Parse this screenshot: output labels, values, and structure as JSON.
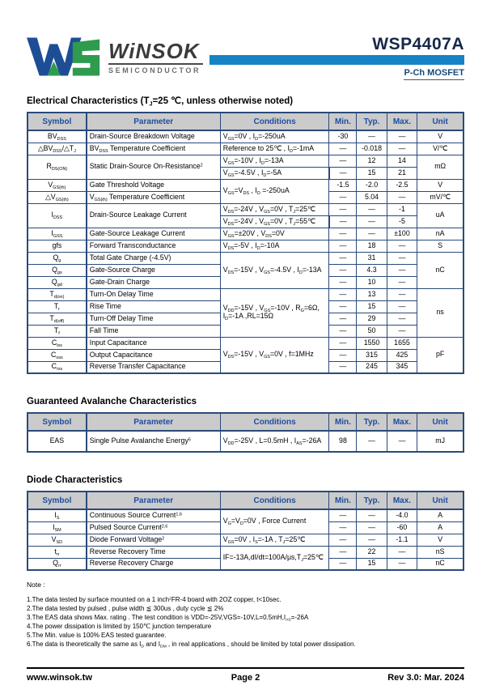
{
  "header": {
    "brand": "WiNSOK",
    "brand_sub": "SEMICONDUCTOR",
    "part_number": "WSP4407A",
    "device_type": "P-Ch MOSFET"
  },
  "colors": {
    "accent_bar": "#1583c5",
    "logo_blue": "#1d4e95",
    "logo_green": "#2f9b4e",
    "table_border": "#2a4a7a",
    "table_header_text": "#1d4da0",
    "table_header_bg": "#cbcbcb",
    "symbol_cell_bg": "#d5d5d5"
  },
  "table_columns": [
    "Symbol",
    "Parameter",
    "Conditions",
    "Min.",
    "Typ.",
    "Max.",
    "Unit"
  ],
  "electrical": {
    "title": "Electrical Characteristics (T~J~=25 ℃, unless otherwise noted)",
    "rows": [
      [
        {
          "t": "BV~DSS~",
          "c": "sym"
        },
        {
          "t": "Drain-Source Breakdown Voltage",
          "c": "param"
        },
        {
          "t": "V~GS~=0V , I~D~=-250uA",
          "c": "cond"
        },
        {
          "t": "-30",
          "c": "num"
        },
        {
          "t": "—",
          "c": "num"
        },
        {
          "t": "—",
          "c": "num"
        },
        {
          "t": "V",
          "c": "unit"
        }
      ],
      [
        {
          "t": "△BV~DSS~/△T~J~",
          "c": "sym"
        },
        {
          "t": "BV~DSS~ Temperature Coefficient",
          "c": "param"
        },
        {
          "t": "Reference to 25℃ , I~D~=-1mA",
          "c": "cond"
        },
        {
          "t": "—",
          "c": "num"
        },
        {
          "t": "-0.018",
          "c": "num"
        },
        {
          "t": "—",
          "c": "num"
        },
        {
          "t": "V/℃",
          "c": "unit"
        }
      ],
      [
        {
          "t": "R~DS(ON)~",
          "c": "sym",
          "r": 2
        },
        {
          "t": "Static Drain-Source On-Resistance^2^",
          "c": "param",
          "r": 2
        },
        {
          "t": "V~GS~=-10V , I~D~=-13A",
          "c": "cond"
        },
        {
          "t": "—",
          "c": "num"
        },
        {
          "t": "12",
          "c": "num"
        },
        {
          "t": "14",
          "c": "num"
        },
        {
          "t": "mΩ",
          "c": "unit",
          "r": 2
        }
      ],
      [
        {
          "t": "V~GS~=-4.5V , I~D~=-5A",
          "c": "cond"
        },
        {
          "t": "—",
          "c": "num"
        },
        {
          "t": "15",
          "c": "num"
        },
        {
          "t": "21",
          "c": "num"
        }
      ],
      [
        {
          "t": "V~GS(th)~",
          "c": "sym"
        },
        {
          "t": "Gate Threshold Voltage",
          "c": "param"
        },
        {
          "t": "V~GS~=V~DS~ , I~D~ =-250uA",
          "c": "cond",
          "r": 2
        },
        {
          "t": "-1.5",
          "c": "num"
        },
        {
          "t": "-2.0",
          "c": "num"
        },
        {
          "t": "-2.5",
          "c": "num"
        },
        {
          "t": "V",
          "c": "unit"
        }
      ],
      [
        {
          "t": "△V~GS(th)~",
          "c": "sym"
        },
        {
          "t": "V~GS(th)~ Temperature Coefficient",
          "c": "param"
        },
        {
          "t": "—",
          "c": "num"
        },
        {
          "t": "5.04",
          "c": "num"
        },
        {
          "t": "—",
          "c": "num"
        },
        {
          "t": "mV/℃",
          "c": "unit"
        }
      ],
      [
        {
          "t": "I~DSS~",
          "c": "sym",
          "r": 2
        },
        {
          "t": "Drain-Source Leakage Current",
          "c": "param",
          "r": 2
        },
        {
          "t": "V~DS~=-24V , V~GS~=0V , T~J~=25℃",
          "c": "cond"
        },
        {
          "t": "—",
          "c": "num"
        },
        {
          "t": "—",
          "c": "num"
        },
        {
          "t": "-1",
          "c": "num"
        },
        {
          "t": "uA",
          "c": "unit",
          "r": 2
        }
      ],
      [
        {
          "t": "V~DS~=-24V , V~GS~=0V , T~J~=55℃",
          "c": "cond"
        },
        {
          "t": "—",
          "c": "num"
        },
        {
          "t": "—",
          "c": "num"
        },
        {
          "t": "-5",
          "c": "num"
        }
      ],
      [
        {
          "t": "I~GSS~",
          "c": "sym"
        },
        {
          "t": "Gate-Source Leakage Current",
          "c": "param"
        },
        {
          "t": "V~GS~=±20V , V~DS~=0V",
          "c": "cond"
        },
        {
          "t": "—",
          "c": "num"
        },
        {
          "t": "—",
          "c": "num"
        },
        {
          "t": "±100",
          "c": "num"
        },
        {
          "t": "nA",
          "c": "unit"
        }
      ],
      [
        {
          "t": "gfs",
          "c": "sym"
        },
        {
          "t": "Forward Transconductance",
          "c": "param"
        },
        {
          "t": "V~DS~=-5V , I~D~=-10A",
          "c": "cond"
        },
        {
          "t": "—",
          "c": "num"
        },
        {
          "t": "18",
          "c": "num"
        },
        {
          "t": "—",
          "c": "num"
        },
        {
          "t": "S",
          "c": "unit"
        }
      ],
      [
        {
          "t": "Q~g~",
          "c": "sym"
        },
        {
          "t": "Total Gate Charge (-4.5V)",
          "c": "param"
        },
        {
          "t": "V~DS~=-15V , V~GS~=-4.5V , I~D~=-13A",
          "c": "cond",
          "r": 3
        },
        {
          "t": "—",
          "c": "num"
        },
        {
          "t": "31",
          "c": "num"
        },
        {
          "t": "—",
          "c": "num"
        },
        {
          "t": "nC",
          "c": "unit",
          "r": 3
        }
      ],
      [
        {
          "t": "Q~gs~",
          "c": "sym"
        },
        {
          "t": "Gate-Source Charge",
          "c": "param"
        },
        {
          "t": "—",
          "c": "num"
        },
        {
          "t": "4.3",
          "c": "num"
        },
        {
          "t": "—",
          "c": "num"
        }
      ],
      [
        {
          "t": "Q~gd~",
          "c": "sym"
        },
        {
          "t": "Gate-Drain Charge",
          "c": "param"
        },
        {
          "t": "—",
          "c": "num"
        },
        {
          "t": "10",
          "c": "num"
        },
        {
          "t": "—",
          "c": "num"
        }
      ],
      [
        {
          "t": "T~d(on)~",
          "c": "sym"
        },
        {
          "t": "Turn-On Delay Time",
          "c": "param"
        },
        {
          "t": "V~DD~=-15V , V~GS~=-10V , R~G~=6Ω, I~D~=-1A ,RL=15Ω",
          "c": "cond",
          "r": 4
        },
        {
          "t": "—",
          "c": "num"
        },
        {
          "t": "13",
          "c": "num"
        },
        {
          "t": "—",
          "c": "num"
        },
        {
          "t": "ns",
          "c": "unit",
          "r": 4
        }
      ],
      [
        {
          "t": "T~r~",
          "c": "sym"
        },
        {
          "t": "Rise Time",
          "c": "param"
        },
        {
          "t": "—",
          "c": "num"
        },
        {
          "t": "15",
          "c": "num"
        },
        {
          "t": "—",
          "c": "num"
        }
      ],
      [
        {
          "t": "T~d(off)~",
          "c": "sym"
        },
        {
          "t": "Turn-Off Delay Time",
          "c": "param"
        },
        {
          "t": "—",
          "c": "num"
        },
        {
          "t": "29",
          "c": "num"
        },
        {
          "t": "—",
          "c": "num"
        }
      ],
      [
        {
          "t": "T~f~",
          "c": "sym"
        },
        {
          "t": "Fall Time",
          "c": "param"
        },
        {
          "t": "—",
          "c": "num"
        },
        {
          "t": "50",
          "c": "num"
        },
        {
          "t": "—",
          "c": "num"
        }
      ],
      [
        {
          "t": "C~iss~",
          "c": "sym"
        },
        {
          "t": "Input Capacitance",
          "c": "param"
        },
        {
          "t": "V~DS~=-15V , V~GS~=0V , f=1MHz",
          "c": "cond",
          "r": 3
        },
        {
          "t": "—",
          "c": "num"
        },
        {
          "t": "1550",
          "c": "num"
        },
        {
          "t": "1655",
          "c": "num"
        },
        {
          "t": "pF",
          "c": "unit",
          "r": 3
        }
      ],
      [
        {
          "t": "C~oss~",
          "c": "sym"
        },
        {
          "t": "Output Capacitance",
          "c": "param"
        },
        {
          "t": "—",
          "c": "num"
        },
        {
          "t": "315",
          "c": "num"
        },
        {
          "t": "425",
          "c": "num"
        }
      ],
      [
        {
          "t": "C~rss~",
          "c": "sym"
        },
        {
          "t": "Reverse Transfer Capacitance",
          "c": "param"
        },
        {
          "t": "—",
          "c": "num"
        },
        {
          "t": "245",
          "c": "num"
        },
        {
          "t": "345",
          "c": "num"
        }
      ]
    ]
  },
  "avalanche": {
    "title": "Guaranteed Avalanche Characteristics",
    "rows": [
      [
        {
          "t": "EAS",
          "c": "sym"
        },
        {
          "t": "Single Pulse Avalanche Energy^5^",
          "c": "param"
        },
        {
          "t": "V~DD~=-25V , L=0.5mH , I~AS~=-26A",
          "c": "cond"
        },
        {
          "t": "98",
          "c": "num"
        },
        {
          "t": "—",
          "c": "num"
        },
        {
          "t": "—",
          "c": "num"
        },
        {
          "t": "mJ",
          "c": "unit"
        }
      ]
    ]
  },
  "diode": {
    "title": "Diode Characteristics",
    "rows": [
      [
        {
          "t": "I~S~",
          "c": "sym"
        },
        {
          "t": "Continuous Source Current^1,6^",
          "c": "param"
        },
        {
          "t": "V~G~=V~D~=0V , Force Current",
          "c": "cond",
          "r": 2
        },
        {
          "t": "—",
          "c": "num"
        },
        {
          "t": "—",
          "c": "num"
        },
        {
          "t": "-4.0",
          "c": "num"
        },
        {
          "t": "A",
          "c": "unit"
        }
      ],
      [
        {
          "t": "I~SM~",
          "c": "sym"
        },
        {
          "t": "Pulsed Source Current^2,6^",
          "c": "param"
        },
        {
          "t": "—",
          "c": "num"
        },
        {
          "t": "—",
          "c": "num"
        },
        {
          "t": "-60",
          "c": "num"
        },
        {
          "t": "A",
          "c": "unit"
        }
      ],
      [
        {
          "t": "V~SD~",
          "c": "sym"
        },
        {
          "t": "Diode Forward Voltage^2^",
          "c": "param"
        },
        {
          "t": "V~GS~=0V , I~S~=-1A , T~J~=25℃",
          "c": "cond"
        },
        {
          "t": "—",
          "c": "num"
        },
        {
          "t": "—",
          "c": "num"
        },
        {
          "t": "-1.1",
          "c": "num"
        },
        {
          "t": "V",
          "c": "unit"
        }
      ],
      [
        {
          "t": "t~rr~",
          "c": "sym"
        },
        {
          "t": "Reverse Recovery Time",
          "c": "param"
        },
        {
          "t": "IF=-13A,dI/dt=100A/μs,T~J~=25℃",
          "c": "cond",
          "r": 2
        },
        {
          "t": "—",
          "c": "num"
        },
        {
          "t": "22",
          "c": "num"
        },
        {
          "t": "—",
          "c": "num"
        },
        {
          "t": "nS",
          "c": "unit"
        }
      ],
      [
        {
          "t": "Q~rr~",
          "c": "sym"
        },
        {
          "t": "Reverse Recovery Charge",
          "c": "param"
        },
        {
          "t": "—",
          "c": "num"
        },
        {
          "t": "15",
          "c": "num"
        },
        {
          "t": "—",
          "c": "num"
        },
        {
          "t": "nC",
          "c": "unit"
        }
      ]
    ]
  },
  "notes": {
    "heading": "Note :",
    "items": [
      "1.The data tested by surface mounted on a 1 inch^2^FR-4 board with 2OZ copper, t<10sec.",
      "2.The data tested by pulsed , pulse width ≦ 300us , duty cycle ≦ 2%",
      "3.The EAS data shows Max. rating . The test condition is VDD=-25V,VGS=-10V,L=0.5mH,I~AS~=-26A",
      "4.The power dissipation is limited by 150℃ junction temperature",
      "5.The Min. value is 100% EAS tested guarantee.",
      "6.The data is theoretically the same as I~D~ and I~DM~ , in real applications , should be limited by total power dissipation."
    ]
  },
  "footer": {
    "website": "www.winsok.tw",
    "page": "Page 2",
    "revision": "Rev 3.0: Mar. 2024"
  }
}
